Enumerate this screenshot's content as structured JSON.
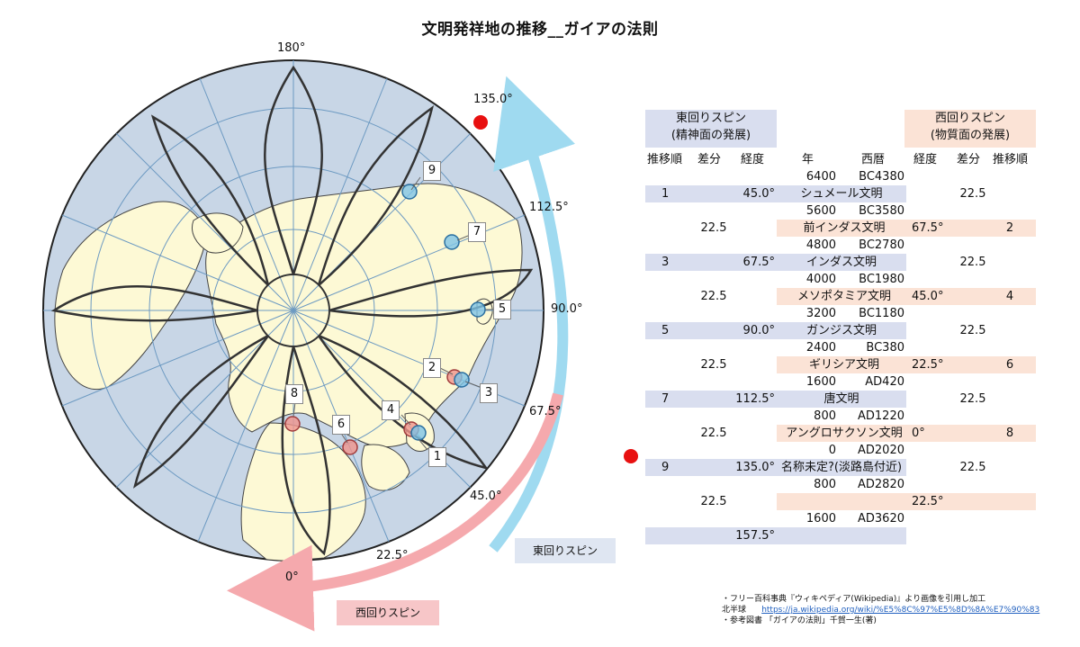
{
  "title": "文明発祥地の推移__ガイアの法則",
  "map": {
    "degree_labels": [
      "180°",
      "135.0°",
      "112.5°",
      "90.0°",
      "67.5°",
      "45.0°",
      "22.5°",
      "0°"
    ],
    "markers": [
      "1",
      "2",
      "3",
      "4",
      "5",
      "6",
      "7",
      "8",
      "9"
    ],
    "east_spin_label": "東回りスピン",
    "west_spin_label": "西回りスピン",
    "colors": {
      "ocean": "#c8d6e6",
      "land": "#fdf9d5",
      "east_arrow": "#9fdaf0",
      "west_arrow": "#f5a9ad",
      "dot": "#e81010"
    }
  },
  "table": {
    "east_header": [
      "東回りスピン",
      "(精神面の発展)"
    ],
    "west_header": [
      "西回りスピン",
      "(物質面の発展)"
    ],
    "columns": [
      "推移順",
      "差分",
      "経度",
      "年",
      "西暦",
      "経度",
      "差分",
      "推移順"
    ],
    "rows": [
      {
        "type": "year",
        "year": "6400",
        "era": "BC4380"
      },
      {
        "type": "east",
        "order": "1",
        "diff": "",
        "lon": "45.0°",
        "name": "シュメール文明",
        "w_diff": "22.5"
      },
      {
        "type": "year",
        "year": "5600",
        "era": "BC3580"
      },
      {
        "type": "west",
        "e_diff": "22.5",
        "name": "前インダス文明",
        "lon": "67.5°",
        "order": "2"
      },
      {
        "type": "year",
        "year": "4800",
        "era": "BC2780"
      },
      {
        "type": "east",
        "order": "3",
        "diff": "",
        "lon": "67.5°",
        "name": "インダス文明",
        "w_diff": "22.5"
      },
      {
        "type": "year",
        "year": "4000",
        "era": "BC1980"
      },
      {
        "type": "west",
        "e_diff": "22.5",
        "name": "メソポタミア文明",
        "lon": "45.0°",
        "order": "4"
      },
      {
        "type": "year",
        "year": "3200",
        "era": "BC1180"
      },
      {
        "type": "east",
        "order": "5",
        "diff": "",
        "lon": "90.0°",
        "name": "ガンジス文明",
        "w_diff": "22.5"
      },
      {
        "type": "year",
        "year": "2400",
        "era": "BC380"
      },
      {
        "type": "west",
        "e_diff": "22.5",
        "name": "ギリシア文明",
        "lon": "22.5°",
        "order": "6"
      },
      {
        "type": "year",
        "year": "1600",
        "era": "AD420"
      },
      {
        "type": "east",
        "order": "7",
        "diff": "",
        "lon": "112.5°",
        "name": "唐文明",
        "w_diff": "22.5"
      },
      {
        "type": "year",
        "year": "800",
        "era": "AD1220"
      },
      {
        "type": "west",
        "e_diff": "22.5",
        "name": "アングロサクソン文明",
        "lon": "0°",
        "order": "8"
      },
      {
        "type": "year",
        "year": "0",
        "era": "AD2020"
      },
      {
        "type": "east",
        "order": "9",
        "diff": "",
        "lon": "135.0°",
        "name": "名称未定?(淡路島付近)",
        "w_diff": "22.5"
      },
      {
        "type": "year",
        "year": "800",
        "era": "AD2820"
      },
      {
        "type": "west",
        "e_diff": "22.5",
        "name": "",
        "lon": "22.5°",
        "order": ""
      },
      {
        "type": "year",
        "year": "1600",
        "era": "AD3620"
      },
      {
        "type": "east",
        "order": "",
        "diff": "",
        "lon": "157.5°",
        "name": "",
        "w_diff": ""
      }
    ]
  },
  "credits": {
    "line1": "・フリー百科事典『ウィキペディア(Wikipedia)』より画像を引用し加工",
    "line2_label": "北半球",
    "line2_link": "https://ja.wikipedia.org/wiki/%E5%8C%97%E5%8D%8A%E7%90%83",
    "line3": "・参考図書 「ガイアの法則」千賀一生(著)"
  }
}
